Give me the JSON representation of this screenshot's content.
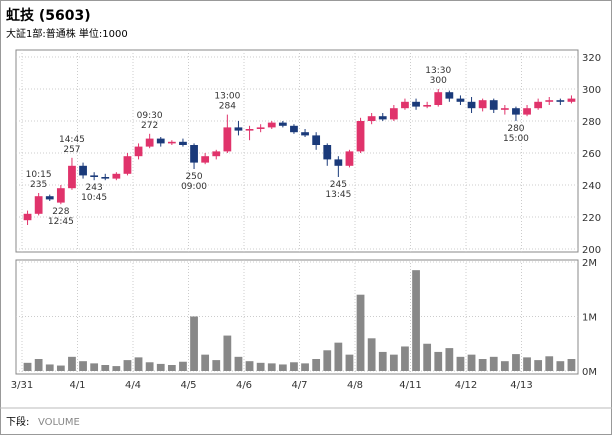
{
  "chart_data": [
    {
      "type": "candlestick",
      "title": "虹技 (5603)",
      "subtitle": "大証1部:普通株 単位:1000",
      "categories": [
        "3/31",
        null,
        null,
        null,
        null,
        "4/1",
        null,
        null,
        null,
        null,
        "4/4",
        null,
        null,
        null,
        null,
        "4/5",
        null,
        null,
        null,
        null,
        "4/6",
        null,
        null,
        null,
        null,
        "4/7",
        null,
        null,
        null,
        null,
        "4/8",
        null,
        null,
        null,
        null,
        "4/11",
        null,
        null,
        null,
        null,
        "4/12",
        null,
        null,
        null,
        null,
        "4/13",
        null,
        null,
        null,
        null
      ],
      "open": [
        218,
        222,
        233,
        229,
        238,
        252,
        246,
        245,
        244,
        247,
        258,
        264,
        269,
        266,
        267,
        265,
        254,
        258,
        261,
        276,
        274,
        275,
        276,
        279,
        277,
        273,
        271,
        265,
        256,
        252,
        261,
        280,
        283,
        281,
        288,
        292,
        289,
        290,
        298,
        294,
        292,
        288,
        293,
        287,
        288,
        284,
        288,
        292,
        293,
        292
      ],
      "high": [
        224,
        235,
        234,
        240,
        257,
        254,
        248,
        247,
        248,
        260,
        266,
        272,
        270,
        268,
        269,
        266,
        260,
        262,
        284,
        280,
        277,
        278,
        280,
        280,
        278,
        275,
        273,
        266,
        258,
        262,
        282,
        285,
        285,
        290,
        294,
        294,
        292,
        300,
        299,
        296,
        295,
        294,
        294,
        290,
        289,
        290,
        294,
        295,
        294,
        296
      ],
      "low": [
        215,
        221,
        230,
        228,
        237,
        244,
        243,
        243,
        243,
        246,
        256,
        263,
        264,
        265,
        264,
        250,
        253,
        256,
        260,
        271,
        268,
        273,
        275,
        276,
        272,
        270,
        262,
        252,
        245,
        251,
        260,
        278,
        280,
        280,
        287,
        287,
        288,
        289,
        292,
        290,
        285,
        286,
        285,
        284,
        280,
        283,
        287,
        290,
        290,
        291
      ],
      "close": [
        222,
        233,
        231,
        238,
        252,
        246,
        245,
        244,
        247,
        258,
        264,
        269,
        266,
        267,
        265,
        254,
        258,
        261,
        276,
        274,
        275,
        276,
        279,
        277,
        273,
        271,
        265,
        256,
        252,
        261,
        280,
        283,
        281,
        288,
        292,
        289,
        290,
        298,
        294,
        292,
        288,
        293,
        287,
        288,
        284,
        288,
        292,
        293,
        292,
        294
      ],
      "up_color": "#e0336b",
      "down_color": "#1a3a7a",
      "ylim": [
        200,
        320
      ],
      "yticks": [
        200,
        220,
        240,
        260,
        280,
        300,
        320
      ],
      "grid": true,
      "annotations": [
        {
          "index": 1,
          "time": "10:15",
          "value": 235
        },
        {
          "index": 3,
          "time": "12:45",
          "value": 228
        },
        {
          "index": 4,
          "time": "14:45",
          "value": 257
        },
        {
          "index": 6,
          "time": "10:45",
          "value": 243
        },
        {
          "index": 11,
          "time": "09:30",
          "value": 272
        },
        {
          "index": 15,
          "time": "09:00",
          "value": 250
        },
        {
          "index": 18,
          "time": "13:00",
          "value": 284
        },
        {
          "index": 28,
          "time": "13:45",
          "value": 245
        },
        {
          "index": 37,
          "time": "13:30",
          "value": 300
        },
        {
          "index": 44,
          "time": "15:00",
          "value": 280
        }
      ]
    },
    {
      "type": "bar",
      "caption": "下段:",
      "title": "VOLUME",
      "color": "#888888",
      "values": [
        150000,
        220000,
        120000,
        100000,
        260000,
        180000,
        140000,
        110000,
        90000,
        200000,
        250000,
        160000,
        130000,
        110000,
        170000,
        1000000,
        300000,
        200000,
        650000,
        260000,
        180000,
        150000,
        140000,
        120000,
        160000,
        140000,
        220000,
        380000,
        520000,
        300000,
        1400000,
        600000,
        350000,
        300000,
        450000,
        1850000,
        500000,
        350000,
        420000,
        260000,
        300000,
        220000,
        260000,
        180000,
        310000,
        250000,
        200000,
        270000,
        180000,
        220000
      ],
      "ylim": [
        0,
        2000000
      ],
      "yticks": [
        {
          "value": 0,
          "label": "0M"
        },
        {
          "value": 1000000,
          "label": "1M"
        },
        {
          "value": 2000000,
          "label": "2M"
        }
      ]
    }
  ]
}
